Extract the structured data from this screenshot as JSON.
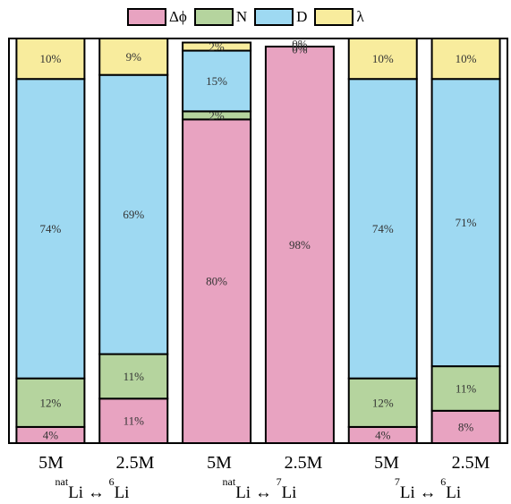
{
  "chart_data": {
    "type": "bar",
    "stacked": true,
    "legend_position": "top",
    "series": [
      {
        "name": "Δϕ",
        "color": "#e8a3c1",
        "values": [
          4,
          11,
          80,
          98,
          4,
          8
        ]
      },
      {
        "name": "N",
        "color": "#b5d49e",
        "values": [
          12,
          11,
          2,
          0,
          12,
          11
        ]
      },
      {
        "name": "D",
        "color": "#9ed9f2",
        "values": [
          74,
          69,
          15,
          0,
          74,
          71
        ]
      },
      {
        "name": "λ",
        "color": "#f8ec9d",
        "values": [
          10,
          9,
          2,
          0,
          10,
          10
        ]
      }
    ],
    "segment_labels": [
      [
        "4%",
        "12%",
        "74%",
        "10%"
      ],
      [
        "11%",
        "11%",
        "69%",
        "9%"
      ],
      [
        "80%",
        "2%",
        "15%",
        "2%"
      ],
      [
        "98%",
        "0%",
        "0%",
        "0%"
      ],
      [
        "4%",
        "12%",
        "74%",
        "10%"
      ],
      [
        "8%",
        "11%",
        "71%",
        "10%"
      ]
    ],
    "categories": [
      "5M",
      "2.5M",
      "5M",
      "2.5M",
      "5M",
      "2.5M"
    ],
    "groups": [
      {
        "base1": "nat",
        "el1": "Li",
        "arrow": "↔",
        "base2": "6",
        "el2": "Li"
      },
      {
        "base1": "nat",
        "el1": "Li",
        "arrow": "↔",
        "base2": "7",
        "el2": "Li"
      },
      {
        "base1": "7",
        "el1": "Li",
        "arrow": "↔",
        "base2": "6",
        "el2": "Li"
      }
    ],
    "ylim": [
      0,
      100
    ]
  }
}
